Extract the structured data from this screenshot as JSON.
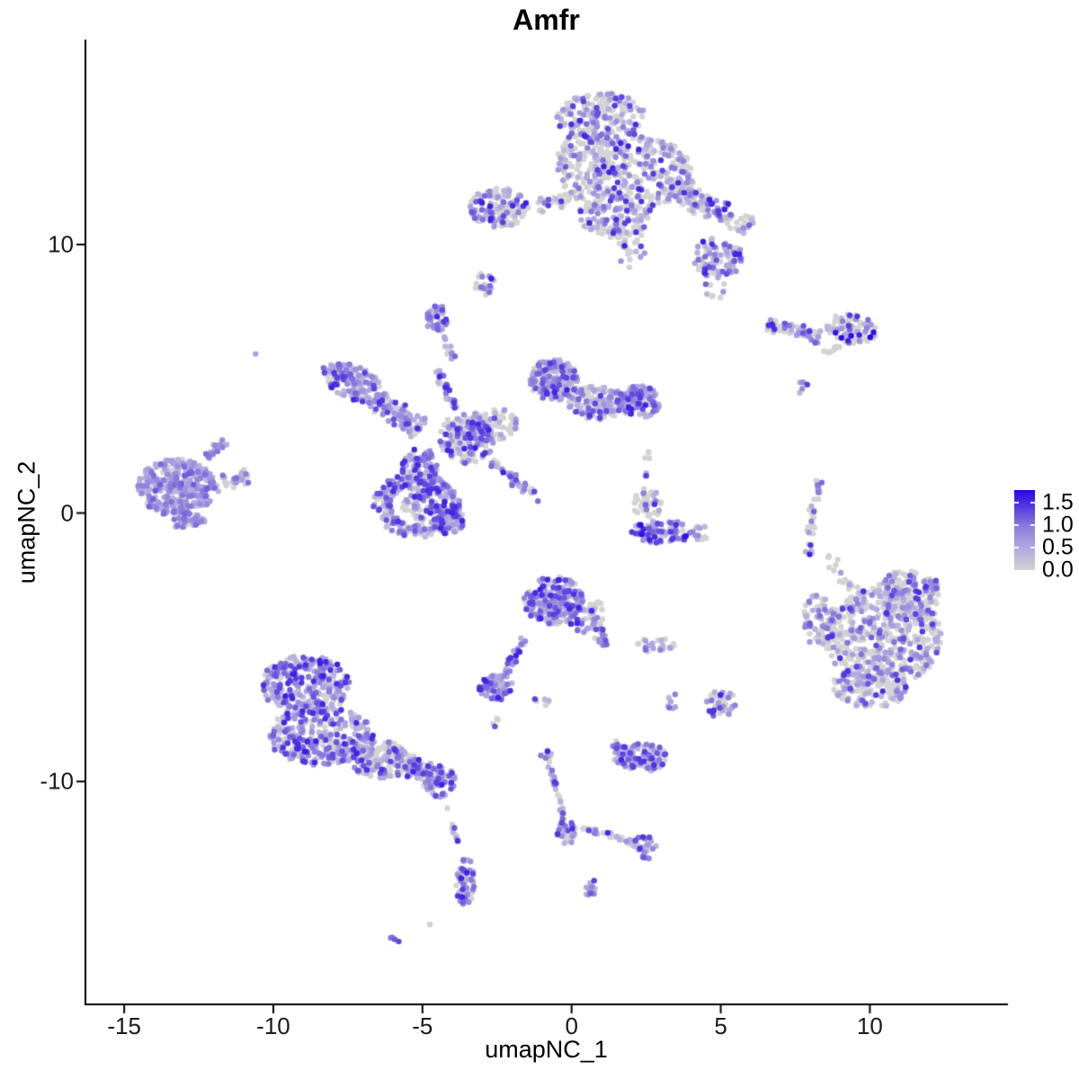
{
  "chart_data": {
    "type": "scatter",
    "title": "Amfr",
    "xlabel": "umapNC_1",
    "ylabel": "umapNC_2",
    "xlim": [
      -16.3,
      14.6
    ],
    "ylim": [
      -18.3,
      17.6
    ],
    "x_ticks": [
      {
        "v": -15,
        "label": "-15"
      },
      {
        "v": -10,
        "label": "-10"
      },
      {
        "v": -5,
        "label": "-5"
      },
      {
        "v": 0,
        "label": "0"
      },
      {
        "v": 5,
        "label": "5"
      },
      {
        "v": 10,
        "label": "10"
      }
    ],
    "y_ticks": [
      {
        "v": 10,
        "label": "10"
      },
      {
        "v": 0,
        "label": "0"
      },
      {
        "v": -10,
        "label": "-10"
      }
    ],
    "grid": false,
    "legend": {
      "position": "right",
      "max_value": 1.78,
      "ticks": [
        {
          "v": 1.5,
          "label": "1.5"
        },
        {
          "v": 1.0,
          "label": "1.0"
        },
        {
          "v": 0.5,
          "label": "0.5"
        },
        {
          "v": 0.0,
          "label": "0.0"
        }
      ],
      "stops": [
        {
          "t": 0.0,
          "c": "#D3D3D3"
        },
        {
          "t": 0.3,
          "c": "#AEA4E0"
        },
        {
          "t": 0.55,
          "c": "#8B7BDB"
        },
        {
          "t": 0.8,
          "c": "#5338E2"
        },
        {
          "t": 1.0,
          "c": "#2606E8"
        }
      ]
    },
    "point_radius": 3.2,
    "expr_default": [
      0.3,
      1.6
    ],
    "seed": 20240613,
    "clusters": [
      {
        "t": "g",
        "x": 1.0,
        "y": 14.7,
        "a": 1.5,
        "b": 0.95,
        "n": 200,
        "p": 0.45
      },
      {
        "t": "g",
        "x": 2.3,
        "y": 12.7,
        "a": 1.7,
        "b": 1.35,
        "n": 260,
        "p": 0.45
      },
      {
        "t": "g",
        "x": 0.4,
        "y": 13.0,
        "a": 0.9,
        "b": 1.2,
        "n": 120,
        "p": 0.4
      },
      {
        "t": "g",
        "x": 1.5,
        "y": 11.1,
        "a": 1.25,
        "b": 0.85,
        "n": 150,
        "p": 0.45
      },
      {
        "t": "g",
        "x": 2.0,
        "y": 9.9,
        "a": 0.5,
        "b": 0.8,
        "n": 25,
        "p": 0.35
      },
      {
        "t": "l",
        "x": 3.4,
        "y": 12.2,
        "X": 6.0,
        "Y": 10.6,
        "w": 0.55,
        "n": 130,
        "p": 0.5
      },
      {
        "t": "g",
        "x": 4.9,
        "y": 9.5,
        "a": 0.85,
        "b": 0.75,
        "n": 95,
        "p": 0.55
      },
      {
        "t": "g",
        "x": 4.9,
        "y": 8.5,
        "a": 0.45,
        "b": 0.6,
        "n": 10,
        "p": 0.35
      },
      {
        "t": "g",
        "x": -2.45,
        "y": 11.4,
        "a": 1.0,
        "b": 0.75,
        "n": 130,
        "p": 0.5
      },
      {
        "t": "l",
        "x": -1.3,
        "y": 11.35,
        "X": 0.4,
        "Y": 11.9,
        "w": 0.3,
        "n": 40,
        "p": 0.4
      },
      {
        "t": "g",
        "x": -2.85,
        "y": 8.55,
        "a": 0.4,
        "b": 0.42,
        "n": 22,
        "p": 0.5
      },
      {
        "t": "g",
        "x": -4.5,
        "y": 7.25,
        "a": 0.4,
        "b": 0.5,
        "n": 38,
        "p": 0.85
      },
      {
        "t": "l",
        "x": -4.3,
        "y": 6.55,
        "X": -4.0,
        "Y": 5.75,
        "w": 0.14,
        "n": 10,
        "p": 0.7
      },
      {
        "t": "g",
        "x": -10.55,
        "y": 5.9,
        "a": 0.06,
        "b": 0.06,
        "n": 1,
        "p": 1,
        "e": [
          0.5,
          0.6
        ]
      },
      {
        "t": "g",
        "x": -7.3,
        "y": 4.85,
        "a": 1.2,
        "b": 0.6,
        "r": -25,
        "n": 150,
        "p": 0.7
      },
      {
        "t": "l",
        "x": -6.7,
        "y": 4.3,
        "X": -5.1,
        "Y": 3.1,
        "w": 0.5,
        "n": 100,
        "p": 0.6
      },
      {
        "t": "o",
        "x": -5.2,
        "y": 0.3,
        "R": 1.15,
        "w": 0.6,
        "n": 250,
        "p": 0.75
      },
      {
        "t": "g",
        "x": -5.1,
        "y": 0.25,
        "a": 0.6,
        "b": 0.5,
        "n": 55,
        "p": 0.6
      },
      {
        "t": "g",
        "x": -4.1,
        "y": -0.2,
        "a": 0.5,
        "b": 0.6,
        "n": 70,
        "p": 0.7
      },
      {
        "t": "g",
        "x": -5.1,
        "y": 1.5,
        "a": 0.6,
        "b": 1.0,
        "n": 110,
        "p": 0.7
      },
      {
        "t": "g",
        "x": -3.5,
        "y": 2.8,
        "a": 0.95,
        "b": 0.95,
        "n": 170,
        "p": 0.5
      },
      {
        "t": "l",
        "x": -4.5,
        "y": 5.3,
        "X": -3.95,
        "Y": 3.9,
        "w": 0.18,
        "n": 26,
        "p": 0.75
      },
      {
        "t": "g",
        "x": -0.6,
        "y": 4.95,
        "a": 0.8,
        "b": 0.8,
        "n": 180,
        "p": 0.75
      },
      {
        "t": "g",
        "x": 0.9,
        "y": 4.1,
        "a": 1.05,
        "b": 0.65,
        "n": 150,
        "p": 0.55
      },
      {
        "t": "g",
        "x": 2.3,
        "y": 4.15,
        "a": 0.7,
        "b": 0.6,
        "n": 120,
        "p": 0.7
      },
      {
        "t": "l",
        "x": -2.7,
        "y": 1.9,
        "X": -1.05,
        "Y": 0.5,
        "w": 0.22,
        "n": 35,
        "p": 0.7
      },
      {
        "t": "g",
        "x": -2.6,
        "y": 3.3,
        "a": 0.8,
        "b": 0.6,
        "n": 70,
        "p": 0.3
      },
      {
        "t": "g",
        "x": -13.25,
        "y": 0.95,
        "a": 1.3,
        "b": 1.05,
        "n": 340,
        "p": 0.8,
        "e": [
          0.35,
          1.25
        ]
      },
      {
        "t": "l",
        "x": -12.3,
        "y": 2.0,
        "X": -11.6,
        "Y": 2.7,
        "w": 0.25,
        "n": 25,
        "p": 0.8,
        "e": [
          0.35,
          1.25
        ]
      },
      {
        "t": "l",
        "x": -12.0,
        "y": 1.1,
        "X": -10.85,
        "Y": 1.35,
        "w": 0.35,
        "n": 30,
        "p": 0.6,
        "e": [
          0.35,
          1.25
        ]
      },
      {
        "t": "g",
        "x": -12.9,
        "y": -0.3,
        "a": 0.6,
        "b": 0.3,
        "n": 40,
        "p": 0.7,
        "e": [
          0.35,
          1.25
        ]
      },
      {
        "t": "g",
        "x": 3.05,
        "y": -0.7,
        "a": 1.05,
        "b": 0.42,
        "n": 95,
        "p": 0.8,
        "e": [
          0.3,
          1.78
        ]
      },
      {
        "t": "g",
        "x": 4.3,
        "y": -0.75,
        "a": 0.3,
        "b": 0.3,
        "n": 12,
        "p": 0.7
      },
      {
        "t": "g",
        "x": 2.55,
        "y": 0.35,
        "a": 0.5,
        "b": 0.6,
        "n": 40,
        "p": 0.35
      },
      {
        "t": "l",
        "x": 2.45,
        "y": 1.3,
        "X": 2.6,
        "Y": 2.3,
        "w": 0.15,
        "n": 8,
        "p": 0.3
      },
      {
        "t": "l",
        "x": 8.35,
        "y": 1.2,
        "X": 7.95,
        "Y": -0.75,
        "w": 0.18,
        "n": 30,
        "p": 0.3
      },
      {
        "t": "g",
        "x": 7.95,
        "y": -1.35,
        "a": 0.15,
        "b": 0.25,
        "n": 6,
        "p": 0.5
      },
      {
        "t": "g",
        "x": 7.8,
        "y": 4.65,
        "a": 0.2,
        "b": 0.3,
        "n": 5,
        "p": 0.9
      },
      {
        "t": "l",
        "x": 6.6,
        "y": 7.0,
        "X": 8.3,
        "Y": 6.55,
        "w": 0.3,
        "n": 65,
        "p": 0.5
      },
      {
        "t": "g",
        "x": 9.4,
        "y": 6.85,
        "a": 0.85,
        "b": 0.55,
        "r": -10,
        "n": 85,
        "p": 0.5,
        "e": [
          0.3,
          1.78
        ]
      },
      {
        "t": "l",
        "x": 8.5,
        "y": 5.95,
        "X": 9.05,
        "Y": 6.35,
        "w": 0.15,
        "n": 10,
        "p": 0
      },
      {
        "t": "g",
        "x": 10.45,
        "y": -4.6,
        "a": 1.95,
        "b": 1.85,
        "n": 500,
        "p": 0.42,
        "e": [
          0.35,
          1.5
        ]
      },
      {
        "t": "g",
        "x": 11.3,
        "y": -3.0,
        "a": 1.1,
        "b": 0.9,
        "n": 140,
        "p": 0.42,
        "e": [
          0.35,
          1.5
        ]
      },
      {
        "t": "g",
        "x": 10.0,
        "y": -6.5,
        "a": 1.3,
        "b": 0.75,
        "n": 130,
        "p": 0.45,
        "e": [
          0.35,
          1.5
        ]
      },
      {
        "t": "g",
        "x": 8.3,
        "y": -4.0,
        "a": 0.55,
        "b": 1.0,
        "n": 70,
        "p": 0.5,
        "e": [
          0.35,
          1.5
        ]
      },
      {
        "t": "l",
        "x": 8.6,
        "y": -1.6,
        "X": 9.4,
        "Y": -2.9,
        "w": 0.3,
        "n": 16,
        "p": 0.15
      },
      {
        "t": "g",
        "x": -8.9,
        "y": -6.4,
        "a": 1.5,
        "b": 1.1,
        "n": 280,
        "p": 0.78
      },
      {
        "t": "g",
        "x": -8.4,
        "y": -8.3,
        "a": 1.8,
        "b": 1.1,
        "n": 300,
        "p": 0.78
      },
      {
        "t": "g",
        "x": -6.4,
        "y": -9.2,
        "a": 1.0,
        "b": 0.7,
        "n": 150,
        "p": 0.55
      },
      {
        "t": "l",
        "x": -5.5,
        "y": -9.4,
        "X": -4.6,
        "Y": -9.85,
        "w": 0.45,
        "n": 70,
        "p": 0.7
      },
      {
        "t": "g",
        "x": -4.4,
        "y": -10.0,
        "a": 0.5,
        "b": 0.6,
        "n": 65,
        "p": 0.75
      },
      {
        "t": "l",
        "x": -4.25,
        "y": -10.9,
        "X": -3.8,
        "Y": -12.3,
        "w": 0.12,
        "n": 11,
        "p": 0.5
      },
      {
        "t": "g",
        "x": -3.55,
        "y": -13.75,
        "a": 0.33,
        "b": 0.9,
        "n": 55,
        "p": 0.85
      },
      {
        "t": "g",
        "x": -5.95,
        "y": -15.9,
        "a": 0.2,
        "b": 0.12,
        "n": 4,
        "p": 1,
        "e": [
          1.0,
          1.5
        ]
      },
      {
        "t": "g",
        "x": -4.75,
        "y": -15.35,
        "a": 0.05,
        "b": 0.05,
        "n": 1,
        "p": 0
      },
      {
        "t": "g",
        "x": -0.6,
        "y": -3.25,
        "a": 1.0,
        "b": 0.9,
        "n": 200,
        "p": 0.8
      },
      {
        "t": "g",
        "x": 0.3,
        "y": -3.9,
        "a": 0.5,
        "b": 0.6,
        "n": 50,
        "p": 0.6
      },
      {
        "t": "l",
        "x": 0.75,
        "y": -3.3,
        "X": 1.05,
        "Y": -4.95,
        "w": 0.25,
        "n": 40,
        "p": 0.5
      },
      {
        "t": "l",
        "x": -1.55,
        "y": -4.7,
        "X": -2.3,
        "Y": -6.1,
        "w": 0.15,
        "n": 28,
        "p": 0.8
      },
      {
        "t": "g",
        "x": -2.5,
        "y": -6.5,
        "a": 0.6,
        "b": 0.5,
        "n": 75,
        "p": 0.85
      },
      {
        "t": "g",
        "x": -2.55,
        "y": -7.7,
        "a": 0.15,
        "b": 0.3,
        "n": 4,
        "p": 0.5
      },
      {
        "t": "g",
        "x": -0.95,
        "y": -7.0,
        "a": 0.3,
        "b": 0.2,
        "n": 6,
        "p": 0.4
      },
      {
        "t": "g",
        "x": 2.8,
        "y": -4.9,
        "a": 0.65,
        "b": 0.3,
        "n": 25,
        "p": 0.45
      },
      {
        "t": "g",
        "x": 5.0,
        "y": -7.1,
        "a": 0.5,
        "b": 0.55,
        "n": 40,
        "p": 0.75
      },
      {
        "t": "g",
        "x": 3.4,
        "y": -7.05,
        "a": 0.2,
        "b": 0.35,
        "n": 7,
        "p": 0.75
      },
      {
        "t": "g",
        "x": 2.3,
        "y": -9.1,
        "a": 0.9,
        "b": 0.55,
        "n": 115,
        "p": 0.72
      },
      {
        "t": "l",
        "x": 1.35,
        "y": -8.6,
        "X": 1.85,
        "Y": -8.95,
        "w": 0.2,
        "n": 12,
        "p": 0.6
      },
      {
        "t": "g",
        "x": -0.85,
        "y": -9.05,
        "a": 0.2,
        "b": 0.25,
        "n": 12,
        "p": 0.7
      },
      {
        "t": "l",
        "x": -0.75,
        "y": -9.4,
        "X": -0.2,
        "Y": -11.5,
        "w": 0.12,
        "n": 22,
        "p": 0.5
      },
      {
        "t": "g",
        "x": -0.15,
        "y": -11.9,
        "a": 0.35,
        "b": 0.45,
        "n": 32,
        "p": 0.6
      },
      {
        "t": "l",
        "x": 0.25,
        "y": -11.65,
        "X": 2.1,
        "Y": -12.3,
        "w": 0.12,
        "n": 28,
        "p": 0.5
      },
      {
        "t": "g",
        "x": 2.45,
        "y": -12.45,
        "a": 0.4,
        "b": 0.45,
        "n": 30,
        "p": 0.6
      },
      {
        "t": "g",
        "x": 0.65,
        "y": -13.95,
        "a": 0.28,
        "b": 0.3,
        "n": 13,
        "p": 0.85
      }
    ]
  }
}
